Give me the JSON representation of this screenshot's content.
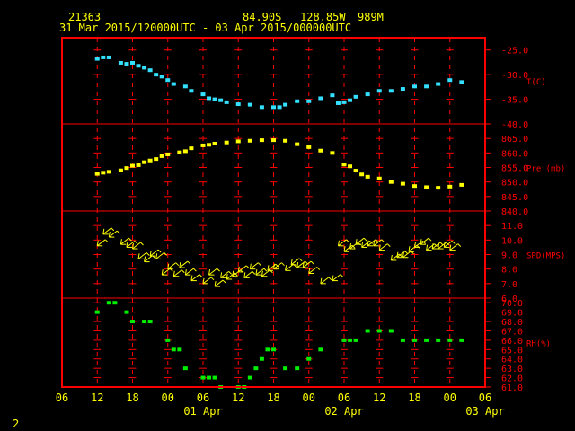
{
  "header": {
    "station": "21363",
    "lat": "84.90S",
    "lon": "128.85W",
    "elev": "989M",
    "period": "31 Mar 2015/120000UTC - 03 Apr 2015/000000UTC"
  },
  "corner_label": "2",
  "colors": {
    "background": "#000000",
    "frame": "#ff0000",
    "grid": "#ff0000",
    "text": "#ffff00",
    "axis_label": "#ff0000",
    "temperature": "#33e0ff",
    "pressure": "#ffff00",
    "wind": "#ffff00",
    "humidity": "#00ee00"
  },
  "x_axis": {
    "range": [
      6,
      78
    ],
    "hour_labels": [
      "06",
      "12",
      "18",
      "00",
      "06",
      "12",
      "18",
      "00",
      "06",
      "12",
      "18",
      "00",
      "06"
    ],
    "date_labels": [
      {
        "label": "01 Apr",
        "hour": 30
      },
      {
        "label": "02 Apr",
        "hour": 54
      },
      {
        "label": "03 Apr",
        "hour": 78
      }
    ]
  },
  "chart_data": [
    {
      "type": "scatter",
      "name": "T(C)",
      "ylabel": "T(C)",
      "ylim": [
        -40,
        -22.5
      ],
      "ticks": [
        "-25.0",
        "-30.0",
        "-35.0",
        "-40.0"
      ],
      "tick_values": [
        -25,
        -30,
        -35,
        -40
      ],
      "x": [
        12,
        13,
        14,
        16,
        17,
        18,
        19,
        20,
        21,
        22,
        23,
        24,
        25,
        27,
        28,
        30,
        31,
        32,
        33,
        34,
        36,
        38,
        40,
        42,
        43,
        44,
        46,
        48,
        50,
        52,
        53,
        54,
        55,
        56,
        58,
        60,
        62,
        64,
        66,
        68,
        70,
        72,
        74
      ],
      "y": [
        -26.8,
        -26.5,
        -26.5,
        -27.6,
        -27.8,
        -27.6,
        -28.2,
        -28.6,
        -29.1,
        -30.0,
        -30.4,
        -31.1,
        -31.9,
        -32.4,
        -33.3,
        -34.0,
        -34.8,
        -35.0,
        -35.2,
        -35.6,
        -36.0,
        -36.1,
        -36.6,
        -36.6,
        -36.6,
        -36.1,
        -35.4,
        -35.4,
        -34.8,
        -34.2,
        -35.8,
        -35.6,
        -35.2,
        -34.5,
        -34.0,
        -33.3,
        -33.3,
        -32.9,
        -32.4,
        -32.4,
        -31.9,
        -31.1,
        -31.5
      ]
    },
    {
      "type": "scatter",
      "name": "Pre (mb)",
      "ylabel": "Pre (mb)",
      "ylim": [
        840,
        870
      ],
      "ticks": [
        "865.0",
        "860.0",
        "855.0",
        "850.0",
        "845.0",
        "840.0"
      ],
      "tick_values": [
        865,
        860,
        855,
        850,
        845,
        840
      ],
      "x": [
        12,
        13,
        14,
        16,
        17,
        18,
        19,
        20,
        21,
        22,
        23,
        24,
        26,
        27,
        28,
        30,
        31,
        32,
        34,
        36,
        38,
        40,
        42,
        44,
        46,
        48,
        50,
        52,
        54,
        55,
        56,
        57,
        58,
        60,
        62,
        64,
        66,
        68,
        70,
        72,
        74
      ],
      "y": [
        852.8,
        853.2,
        853.5,
        854.0,
        854.8,
        855.6,
        855.8,
        856.8,
        857.4,
        857.9,
        858.9,
        859.5,
        860.2,
        860.6,
        861.6,
        862.6,
        862.8,
        863.2,
        863.6,
        864.0,
        864.2,
        864.4,
        864.4,
        864.2,
        863.0,
        862.0,
        860.8,
        860.0,
        856.0,
        855.4,
        853.9,
        852.6,
        851.8,
        851.2,
        850.0,
        849.4,
        848.6,
        848.2,
        848.0,
        848.4,
        849.0
      ]
    },
    {
      "type": "scatter",
      "name": "SPD(MPS)",
      "ylabel": "SPD(MPS)",
      "ylim": [
        6,
        12
      ],
      "ticks": [
        "11.0",
        "10.0",
        "9.0",
        "8.0",
        "7.0",
        "6.0"
      ],
      "tick_values": [
        11,
        10,
        9,
        8,
        7,
        6
      ],
      "x": [
        12,
        13,
        14,
        16,
        17,
        18,
        19,
        20,
        21,
        22,
        23,
        24,
        25,
        26,
        27,
        28,
        30,
        31,
        32,
        33,
        34,
        35,
        36,
        37,
        38,
        39,
        40,
        41,
        42,
        44,
        45,
        46,
        47,
        48,
        50,
        52,
        53,
        54,
        55,
        56,
        57,
        58,
        59,
        60,
        62,
        63,
        64,
        65,
        66,
        67,
        68,
        69,
        70,
        71,
        72
      ],
      "y": [
        9.6,
        10.4,
        10.2,
        9.7,
        9.5,
        9.4,
        8.7,
        8.5,
        8.9,
        8.7,
        7.6,
        8.0,
        7.5,
        8.1,
        7.6,
        7.2,
        7.0,
        7.6,
        6.8,
        7.4,
        7.3,
        7.5,
        7.8,
        7.4,
        8.0,
        7.6,
        7.5,
        7.9,
        8.0,
        7.9,
        8.3,
        8.1,
        8.1,
        7.7,
        7.0,
        7.2,
        9.6,
        9.2,
        9.4,
        9.7,
        9.5,
        9.6,
        9.6,
        9.3,
        8.6,
        8.8,
        8.8,
        9.2,
        9.5,
        9.7,
        9.3,
        9.4,
        9.4,
        9.5,
        9.3
      ]
    },
    {
      "type": "scatter",
      "name": "RH(%)",
      "ylabel": "RH(%)",
      "ylim": [
        61,
        70.5
      ],
      "ticks": [
        "70.0",
        "69.0",
        "68.0",
        "67.0",
        "66.0",
        "65.0",
        "64.0",
        "63.0",
        "62.0",
        "61.0"
      ],
      "tick_values": [
        70,
        69,
        68,
        67,
        66,
        65,
        64,
        63,
        62,
        61
      ],
      "x": [
        12,
        14,
        15,
        17,
        18,
        20,
        21,
        24,
        25,
        26,
        27,
        30,
        31,
        32,
        33,
        36,
        37,
        38,
        39,
        40,
        41,
        42,
        44,
        46,
        48,
        50,
        54,
        55,
        56,
        58,
        60,
        62,
        64,
        66,
        68,
        70,
        72,
        74
      ],
      "y": [
        69,
        70,
        70,
        69,
        68,
        68,
        68,
        66,
        65,
        65,
        63,
        62,
        62,
        62,
        61,
        61,
        61,
        62,
        63,
        64,
        65,
        65,
        63,
        63,
        64,
        65,
        66,
        66,
        66,
        67,
        67,
        67,
        66,
        66,
        66,
        66,
        66,
        66
      ]
    }
  ]
}
